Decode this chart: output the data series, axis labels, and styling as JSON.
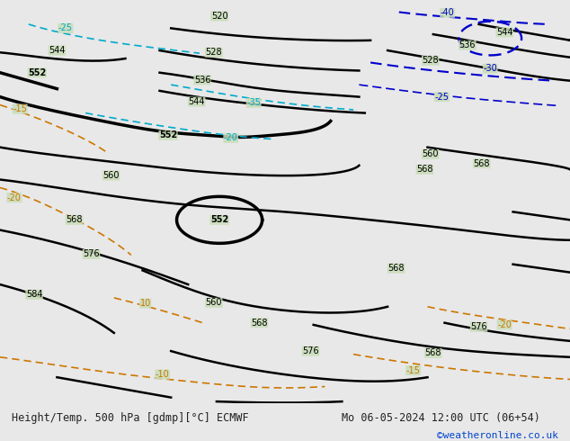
{
  "title_left": "Height/Temp. 500 hPa [gdmp][°C] ECMWF",
  "title_right": "Mo 06-05-2024 12:00 UTC (06+54)",
  "watermark": "©weatheronline.co.uk",
  "map_bg": "#c8ddb8",
  "bottom_bar_color": "#e8e8e8",
  "contour_color_black": "#000000",
  "contour_color_cyan": "#00aacc",
  "contour_color_blue": "#0000cc",
  "temp_neg_color": "#cc7700",
  "text_color": "#222222",
  "label_fontsize": 7,
  "title_fontsize": 9,
  "watermark_color": "#0044cc"
}
